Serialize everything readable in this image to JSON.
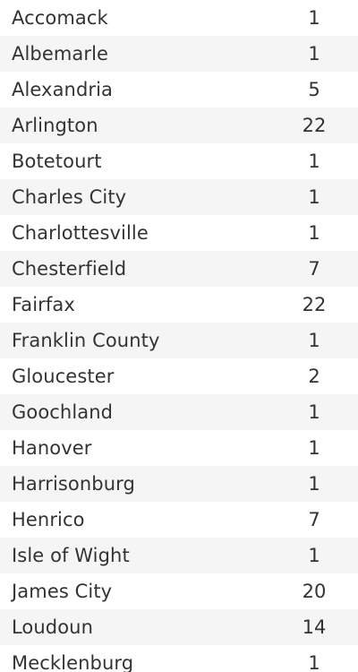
{
  "table": {
    "rows": [
      {
        "name": "Accomack",
        "count": "1"
      },
      {
        "name": "Albemarle",
        "count": "1"
      },
      {
        "name": "Alexandria",
        "count": "5"
      },
      {
        "name": "Arlington",
        "count": "22"
      },
      {
        "name": "Botetourt",
        "count": "1"
      },
      {
        "name": "Charles City",
        "count": "1"
      },
      {
        "name": "Charlottesville",
        "count": "1"
      },
      {
        "name": "Chesterfield",
        "count": "7"
      },
      {
        "name": "Fairfax",
        "count": "22"
      },
      {
        "name": "Franklin County",
        "count": "1"
      },
      {
        "name": "Gloucester",
        "count": "2"
      },
      {
        "name": "Goochland",
        "count": "1"
      },
      {
        "name": "Hanover",
        "count": "1"
      },
      {
        "name": "Harrisonburg",
        "count": "1"
      },
      {
        "name": "Henrico",
        "count": "7"
      },
      {
        "name": "Isle of Wight",
        "count": "1"
      },
      {
        "name": "James City",
        "count": "20"
      },
      {
        "name": "Loudoun",
        "count": "14"
      },
      {
        "name": "Mecklenburg",
        "count": "1"
      }
    ]
  }
}
